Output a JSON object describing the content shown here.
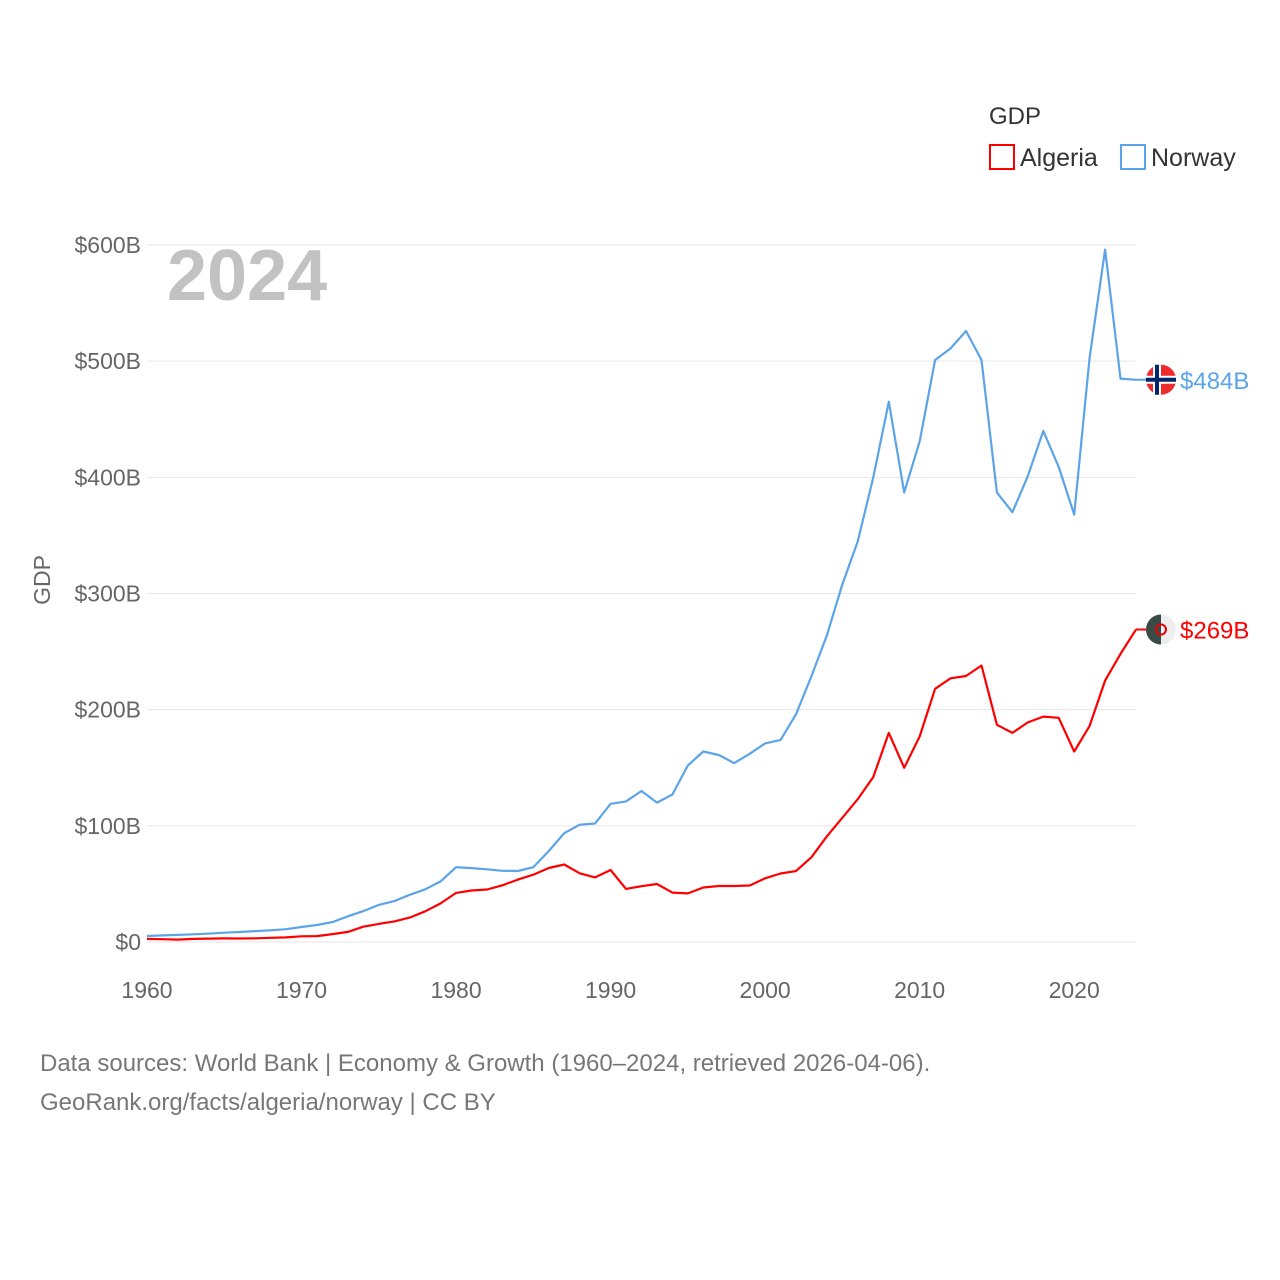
{
  "chart_data": {
    "type": "line",
    "title": "",
    "year_watermark": "2024",
    "xlabel": "",
    "ylabel": "GDP",
    "legend": {
      "title": "GDP",
      "placement": "top-right"
    },
    "xlim": [
      1960,
      2024
    ],
    "ylim": [
      0,
      600
    ],
    "x_ticks": [
      "1960",
      "1970",
      "1980",
      "1990",
      "2000",
      "2010",
      "2020"
    ],
    "y_ticks": [
      {
        "value": 0,
        "label": "$0"
      },
      {
        "value": 100,
        "label": "$100B"
      },
      {
        "value": 200,
        "label": "$200B"
      },
      {
        "value": 300,
        "label": "$300B"
      },
      {
        "value": 400,
        "label": "$400B"
      },
      {
        "value": 500,
        "label": "$500B"
      },
      {
        "value": 600,
        "label": "$600B"
      }
    ],
    "grid": true,
    "x_start": 1960,
    "series": [
      {
        "name": "Algeria",
        "color": "#ff0000",
        "end_label": "$269B",
        "values": [
          2.7,
          2.4,
          2.1,
          2.7,
          2.9,
          3.1,
          3.0,
          3.2,
          3.6,
          4.0,
          4.9,
          5.1,
          6.8,
          8.7,
          13.2,
          15.6,
          17.7,
          21.0,
          26.4,
          33.2,
          42.3,
          44.3,
          45.2,
          48.8,
          53.7,
          57.9,
          63.7,
          66.7,
          59.1,
          55.6,
          62.0,
          45.7,
          48.0,
          49.9,
          42.5,
          41.8,
          46.9,
          48.2,
          48.2,
          48.6,
          54.8,
          59,
          61,
          73,
          91,
          107,
          123,
          142,
          180,
          150,
          177,
          218,
          227,
          229,
          238,
          187,
          180,
          189,
          194,
          193,
          164,
          186,
          225,
          248,
          269
        ]
      },
      {
        "name": "Norway",
        "color": "#5ba4e8",
        "end_label": "$484B",
        "values": [
          5.2,
          5.7,
          6.1,
          6.6,
          7.2,
          8.0,
          8.6,
          9.4,
          10.1,
          11.0,
          12.9,
          14.6,
          17.1,
          22.1,
          26.6,
          31.9,
          35.2,
          40.6,
          45.4,
          52.2,
          64.4,
          63.6,
          62.6,
          61.3,
          61.1,
          64.4,
          78.3,
          93.7,
          101,
          102,
          119,
          121,
          130,
          120,
          127,
          152,
          164,
          161,
          154,
          162,
          171,
          174,
          196,
          229,
          264,
          308,
          345,
          400,
          465,
          387,
          431,
          501,
          511,
          526,
          501,
          387,
          370,
          401,
          440,
          409,
          368,
          503,
          596,
          485,
          484
        ]
      }
    ]
  },
  "footer": {
    "line1": "Data sources: World Bank | Economy & Growth (1960–2024, retrieved 2026-04-06).",
    "line2": "GeoRank.org/facts/algeria/norway | CC BY"
  }
}
